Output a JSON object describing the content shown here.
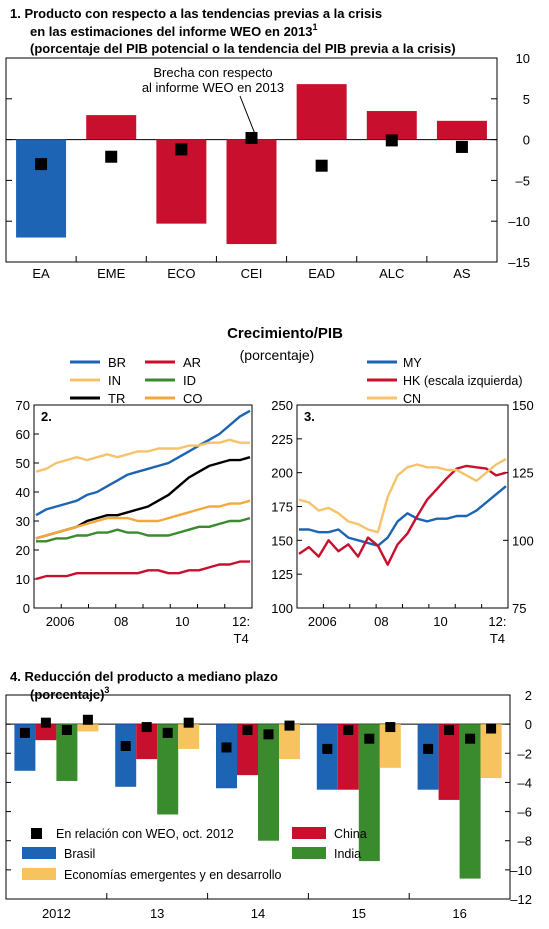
{
  "colors": {
    "blue": "#1E64B4",
    "red": "#C8102E",
    "green": "#3A8A2E",
    "orange": "#F4A83A",
    "lightorange": "#F7C36A",
    "black": "#000000",
    "yellow": "#F6C35E"
  },
  "chart_data": [
    {
      "id": "panel1",
      "type": "bar",
      "title_lines": [
        "1. Producto con respecto a las tendencias previas a la crisis",
        "en las estimaciones del informe WEO en 2013",
        "(porcentaje del PIB potencial o la tendencia del PIB previa a la crisis)"
      ],
      "title_superscript": "1",
      "annotation": [
        "Brecha con respecto",
        "al informe WEO en 2013"
      ],
      "categories": [
        "EA",
        "EME",
        "ECO",
        "CEI",
        "EAD",
        "ALC",
        "AS"
      ],
      "values": [
        -12,
        3,
        -10.3,
        -12.8,
        6.8,
        3.5,
        2.3
      ],
      "bar_colors": [
        "blue",
        "red",
        "red",
        "red",
        "red",
        "red",
        "red"
      ],
      "markers": [
        -3,
        -2.1,
        -1.2,
        0.2,
        -3.2,
        -0.1,
        -0.9
      ],
      "ylim": [
        -15,
        10
      ],
      "yticks": [
        -15,
        -10,
        -5,
        0,
        5,
        10
      ]
    },
    {
      "id": "header",
      "title": "Crecimiento/PIB",
      "subtitle": "(porcentaje)"
    },
    {
      "id": "panel2",
      "type": "line",
      "label": "2.",
      "x_labels": [
        "2006",
        "08",
        "10",
        "12:\nT4"
      ],
      "ylim": [
        0,
        70
      ],
      "yticks": [
        0,
        10,
        20,
        30,
        40,
        50,
        60,
        70
      ],
      "legend": [
        {
          "name": "BR",
          "color": "blue"
        },
        {
          "name": "AR",
          "color": "red"
        },
        {
          "name": "IN",
          "color": "lightorange"
        },
        {
          "name": "ID",
          "color": "green"
        },
        {
          "name": "TR",
          "color": "black"
        },
        {
          "name": "CO",
          "color": "orange"
        }
      ],
      "series": [
        {
          "name": "BR",
          "color": "blue",
          "values": [
            32,
            34,
            35,
            36,
            37,
            39,
            40,
            42,
            44,
            46,
            47,
            48,
            49,
            50,
            52,
            54,
            56,
            58,
            60,
            63,
            66,
            68
          ]
        },
        {
          "name": "IN",
          "color": "lightorange",
          "values": [
            47,
            48,
            50,
            51,
            52,
            51,
            52,
            53,
            52,
            53,
            54,
            54,
            55,
            55,
            55,
            56,
            56,
            57,
            57,
            58,
            57,
            57
          ]
        },
        {
          "name": "TR",
          "color": "black",
          "values": [
            24,
            25,
            26,
            27,
            28,
            30,
            31,
            32,
            32,
            33,
            34,
            35,
            37,
            39,
            42,
            45,
            47,
            49,
            50,
            51,
            51,
            52
          ]
        },
        {
          "name": "CO",
          "color": "orange",
          "values": [
            24,
            25,
            26,
            27,
            28,
            29,
            30,
            31,
            31,
            31,
            30,
            30,
            30,
            31,
            32,
            33,
            34,
            35,
            35,
            36,
            36,
            37
          ]
        },
        {
          "name": "ID",
          "color": "green",
          "values": [
            23,
            23,
            24,
            24,
            25,
            25,
            26,
            26,
            27,
            26,
            26,
            25,
            25,
            25,
            26,
            27,
            28,
            28,
            29,
            30,
            30,
            31
          ]
        },
        {
          "name": "AR",
          "color": "red",
          "values": [
            10,
            11,
            11,
            11,
            12,
            12,
            12,
            12,
            12,
            12,
            12,
            13,
            13,
            12,
            12,
            13,
            13,
            14,
            15,
            15,
            16,
            16
          ]
        }
      ]
    },
    {
      "id": "panel3",
      "type": "line",
      "label": "3.",
      "x_labels": [
        "2006",
        "08",
        "10",
        "12:\nT4"
      ],
      "ylim_left": [
        100,
        250
      ],
      "yticks_left": [
        100,
        125,
        150,
        175,
        200,
        225,
        250
      ],
      "ylim_right": [
        75,
        150
      ],
      "yticks_right": [
        75,
        100,
        125,
        150
      ],
      "legend": [
        {
          "name": "MY",
          "color": "blue"
        },
        {
          "name": "HK (escala izquierda)",
          "color": "red"
        },
        {
          "name": "CN",
          "color": "lightorange"
        }
      ],
      "series": [
        {
          "name": "MY",
          "axis": "right",
          "color": "blue",
          "values": [
            104,
            104,
            103,
            103,
            104,
            101,
            100,
            99,
            98,
            101,
            107,
            110,
            108,
            107,
            108,
            108,
            109,
            109,
            111,
            114,
            117,
            120
          ]
        },
        {
          "name": "HK",
          "axis": "left",
          "color": "red",
          "values": [
            140,
            145,
            138,
            150,
            142,
            147,
            138,
            152,
            146,
            132,
            147,
            155,
            168,
            180,
            188,
            196,
            203,
            205,
            204,
            203,
            198,
            200
          ]
        },
        {
          "name": "CN",
          "axis": "right",
          "color": "lightorange",
          "values": [
            115,
            114,
            111,
            112,
            110,
            107,
            106,
            104,
            103,
            116,
            124,
            127,
            128,
            127,
            127,
            126,
            126,
            124,
            122,
            125,
            128,
            130
          ]
        }
      ]
    },
    {
      "id": "panel4",
      "type": "bar",
      "title": "4. Reducción del producto a mediano plazo",
      "subtitle": "(porcentaje)",
      "subtitle_superscript": "3",
      "categories": [
        "2012",
        "13",
        "14",
        "15",
        "16"
      ],
      "ylim": [
        -12,
        2
      ],
      "yticks": [
        -12,
        -10,
        -8,
        -6,
        -4,
        -2,
        0,
        2
      ],
      "series": [
        {
          "name": "Brasil",
          "color": "blue",
          "values": [
            -3.2,
            -4.3,
            -4.4,
            -4.5,
            -4.5
          ]
        },
        {
          "name": "China",
          "color": "red",
          "values": [
            -1.1,
            -2.4,
            -3.5,
            -4.5,
            -5.2
          ]
        },
        {
          "name": "India",
          "color": "green",
          "values": [
            -3.9,
            -6.2,
            -8.0,
            -9.4,
            -10.6
          ]
        },
        {
          "name": "Economías emergentes y en desarrollo",
          "color": "yellow",
          "values": [
            -0.5,
            -1.7,
            -2.4,
            -3.0,
            -3.7
          ]
        }
      ],
      "markers": [
        [
          -0.6,
          0.1,
          -0.4,
          0.3
        ],
        [
          -1.5,
          -0.2,
          -0.6,
          0.1
        ],
        [
          -1.6,
          -0.4,
          -0.7,
          -0.1
        ],
        [
          -1.7,
          -0.4,
          -1.0,
          -0.2
        ],
        [
          -1.7,
          -0.4,
          -1.0,
          -0.3
        ]
      ],
      "legend": [
        {
          "name": "En relación con WEO, oct. 2012",
          "marker": "square",
          "color": "black"
        },
        {
          "name": "China",
          "color": "red"
        },
        {
          "name": "Brasil",
          "color": "blue"
        },
        {
          "name": "India",
          "color": "green"
        },
        {
          "name": "Economías emergentes y en desarrollo",
          "color": "yellow"
        }
      ]
    }
  ]
}
